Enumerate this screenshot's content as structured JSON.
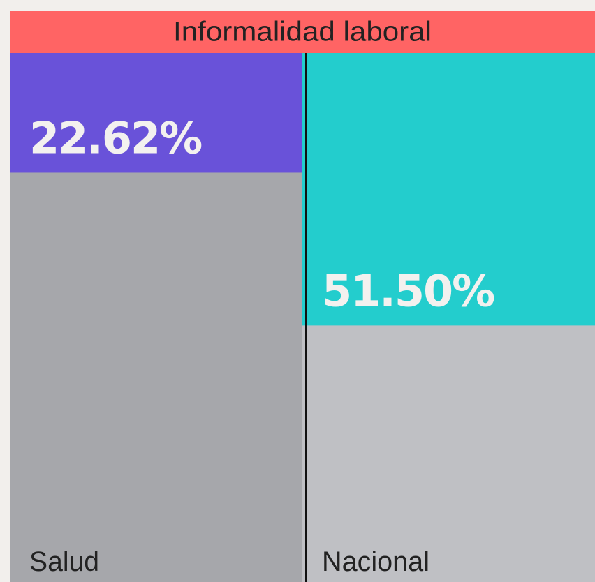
{
  "chart_data": {
    "type": "bar",
    "title": "Informalidad laboral",
    "categories": [
      "Salud",
      "Nacional"
    ],
    "values": [
      22.62,
      51.5
    ],
    "value_labels": [
      "22.62%",
      "51.50%"
    ],
    "colors": [
      "#6952d9",
      "#23cdcd"
    ],
    "rest_colors": [
      "#a6a7ab",
      "#bfc0c4"
    ],
    "title_color": "#ff6464",
    "ylim": [
      0,
      100
    ]
  }
}
